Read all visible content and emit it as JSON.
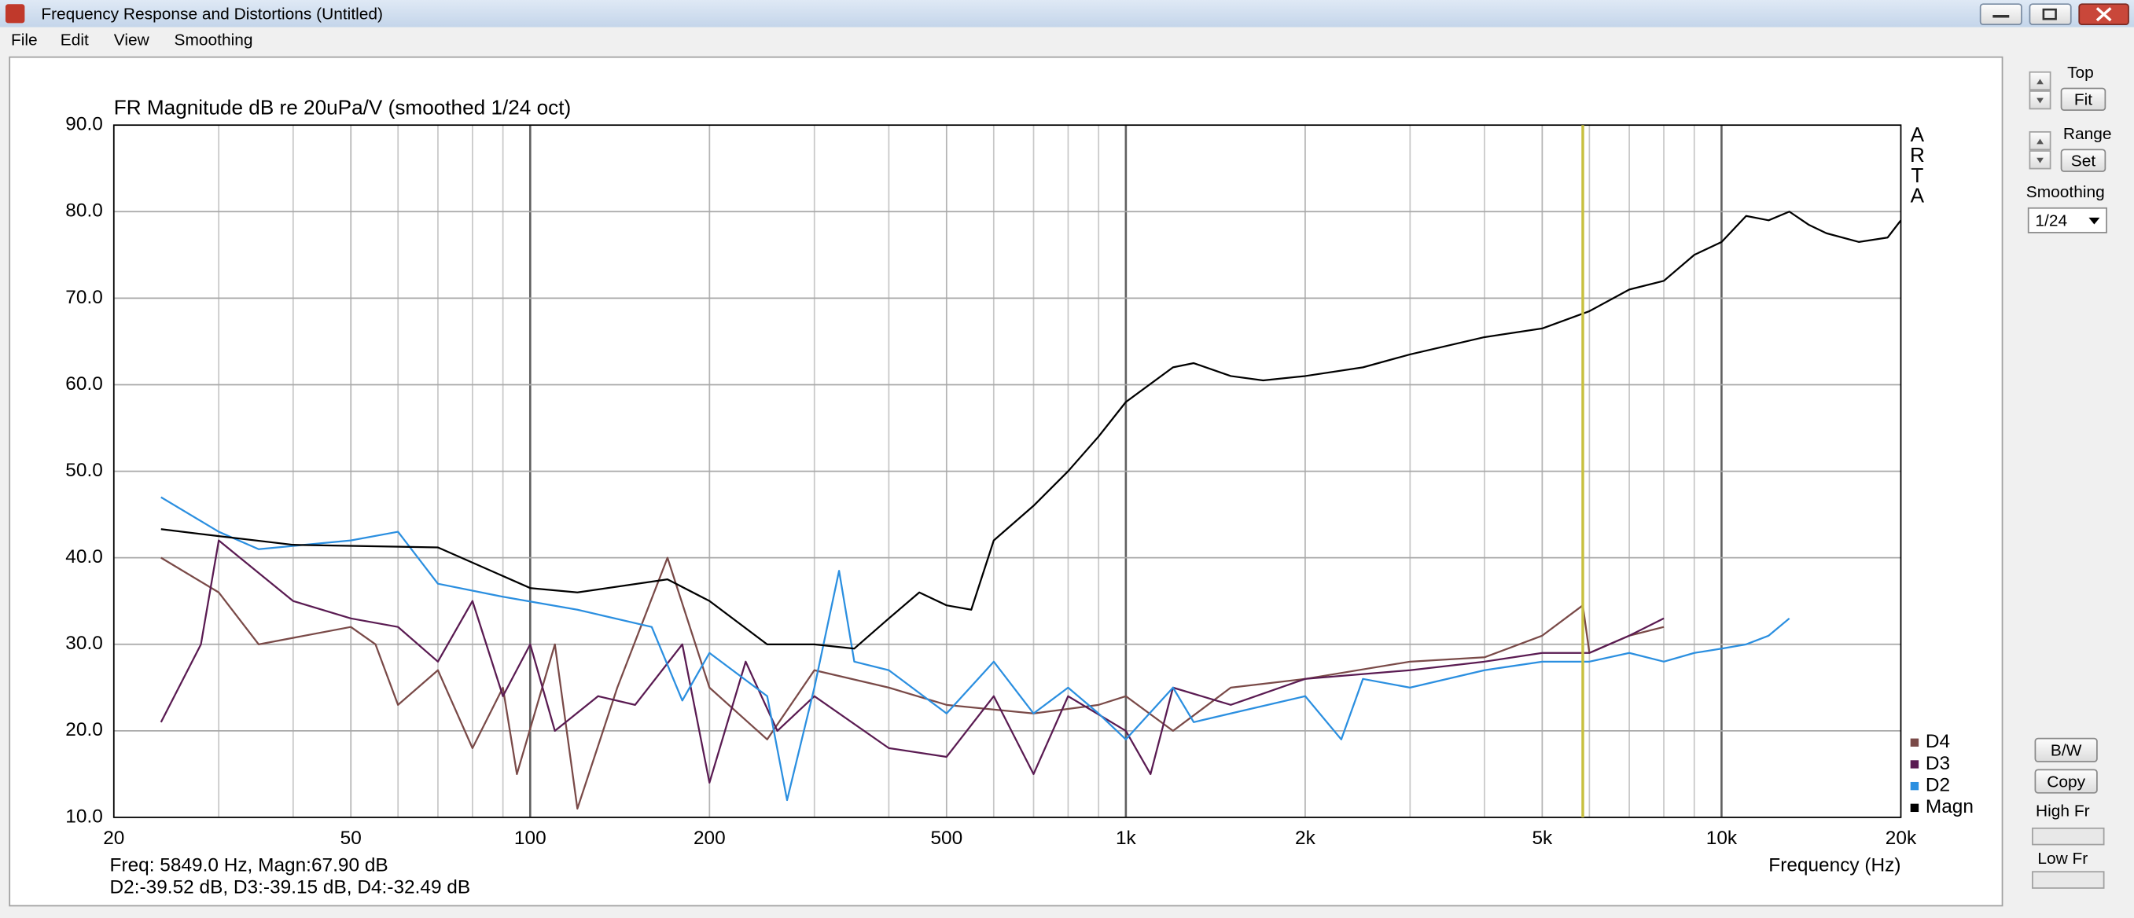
{
  "window": {
    "title": "Frequency Response and Distortions (Untitled)"
  },
  "menu": [
    "File",
    "Edit",
    "View",
    "Smoothing"
  ],
  "side_panel": {
    "top": "Top",
    "fit": "Fit",
    "range": "Range",
    "set": "Set",
    "smoothing": "Smoothing",
    "smoothing_value": "1/24",
    "bw": "B/W",
    "copy": "Copy",
    "high_fr": "High Fr",
    "low_fr": "Low Fr"
  },
  "chart_data": {
    "type": "line",
    "title": "FR Magnitude dB re 20uPa/V (smoothed 1/24 oct)",
    "x_label": "Frequency (Hz)",
    "brand": [
      "A",
      "R",
      "T",
      "A"
    ],
    "log_x": true,
    "grid": true,
    "legend": "bottom-right",
    "xlim": [
      20,
      20000
    ],
    "xticks": [
      20,
      50,
      100,
      200,
      500,
      {
        "value": 1000,
        "label": "1k"
      },
      {
        "value": 2000,
        "label": "2k"
      },
      {
        "value": 5000,
        "label": "5k"
      },
      {
        "value": 10000,
        "label": "10k"
      },
      {
        "value": 20000,
        "label": "20k"
      }
    ],
    "xminor_ticks": [
      30,
      40,
      60,
      70,
      80,
      90,
      300,
      400,
      600,
      700,
      800,
      900,
      3000,
      4000,
      6000,
      7000,
      8000,
      9000
    ],
    "ylim": [
      10,
      90
    ],
    "yticks": [
      {
        "value": 10,
        "label": "10.0"
      },
      {
        "value": 20,
        "label": "20.0"
      },
      {
        "value": 30,
        "label": "30.0"
      },
      {
        "value": 40,
        "label": "40.0"
      },
      {
        "value": 50,
        "label": "50.0"
      },
      {
        "value": 60,
        "label": "60.0"
      },
      {
        "value": 70,
        "label": "70.0"
      },
      {
        "value": 80,
        "label": "80.0"
      },
      {
        "value": 90,
        "label": "90.0"
      }
    ],
    "cursor_x": 5849,
    "cursor_color": "#c8c040",
    "series": [
      {
        "name": "D4",
        "color": "#7a4a48",
        "x": [
          24,
          30,
          35,
          50,
          55,
          60,
          70,
          80,
          90,
          95,
          110,
          120,
          140,
          170,
          200,
          250,
          300,
          400,
          500,
          700,
          900,
          1000,
          1200,
          1500,
          2000,
          3000,
          4000,
          5000,
          5849,
          6000,
          7000,
          8000
        ],
        "values": [
          40,
          36,
          30,
          32,
          30,
          23,
          27,
          18,
          25,
          15,
          30,
          11,
          25,
          40,
          25,
          19,
          27,
          25,
          23,
          22,
          23,
          24,
          20,
          25,
          26,
          28,
          28.5,
          31,
          34.5,
          29,
          31,
          32
        ]
      },
      {
        "name": "D3",
        "color": "#5a1b52",
        "x": [
          24,
          28,
          30,
          40,
          50,
          60,
          70,
          80,
          90,
          100,
          110,
          130,
          150,
          180,
          200,
          230,
          260,
          300,
          400,
          500,
          600,
          700,
          800,
          1000,
          1100,
          1200,
          1500,
          2000,
          3000,
          4000,
          5000,
          6000,
          7000,
          8000
        ],
        "values": [
          21,
          30,
          42,
          35,
          33,
          32,
          28,
          35,
          24,
          30,
          20,
          24,
          23,
          30,
          14,
          28,
          20,
          24,
          18,
          17,
          24,
          15,
          24,
          20,
          15,
          25,
          23,
          26,
          27,
          28,
          29,
          29,
          31,
          33
        ]
      },
      {
        "name": "D2",
        "color": "#2b8fe0",
        "x": [
          24,
          30,
          35,
          50,
          60,
          70,
          90,
          120,
          160,
          180,
          200,
          250,
          270,
          300,
          330,
          350,
          400,
          500,
          600,
          700,
          800,
          900,
          1000,
          1200,
          1300,
          1500,
          2000,
          2300,
          2500,
          3000,
          4000,
          5000,
          6000,
          7000,
          8000,
          9000,
          10000,
          11000,
          12000,
          13000
        ],
        "values": [
          47,
          43,
          41,
          42,
          43,
          37,
          35.5,
          34,
          32,
          23.5,
          29,
          24,
          12,
          25,
          38.5,
          28,
          27,
          22,
          28,
          22,
          25,
          22,
          19,
          25,
          21,
          22,
          24,
          19,
          26,
          25,
          27,
          28,
          28,
          29,
          28,
          29,
          29.5,
          30,
          31,
          33
        ]
      },
      {
        "name": "Magn",
        "color": "#000000",
        "x": [
          24,
          30,
          40,
          70,
          100,
          120,
          170,
          200,
          250,
          300,
          350,
          400,
          450,
          500,
          550,
          600,
          700,
          800,
          900,
          1000,
          1200,
          1300,
          1500,
          1700,
          2000,
          2500,
          3000,
          4000,
          5000,
          6000,
          7000,
          8000,
          9000,
          10000,
          11000,
          12000,
          13000,
          14000,
          15000,
          17000,
          19000,
          20000
        ],
        "values": [
          43.3,
          42.5,
          41.5,
          41.2,
          36.5,
          36,
          37.5,
          35,
          30,
          30,
          29.5,
          33,
          36,
          34.5,
          34,
          42,
          46,
          50,
          54,
          58,
          62,
          62.5,
          61,
          60.5,
          61,
          62,
          63.5,
          65.5,
          66.5,
          68.5,
          71,
          72,
          75,
          76.5,
          79.5,
          79,
          80,
          78.5,
          77.5,
          76.5,
          77,
          79
        ]
      }
    ]
  },
  "status": [
    "Freq: 5849.0 Hz, Magn:67.90 dB",
    "D2:-39.52 dB, D3:-39.15 dB, D4:-32.49 dB"
  ]
}
